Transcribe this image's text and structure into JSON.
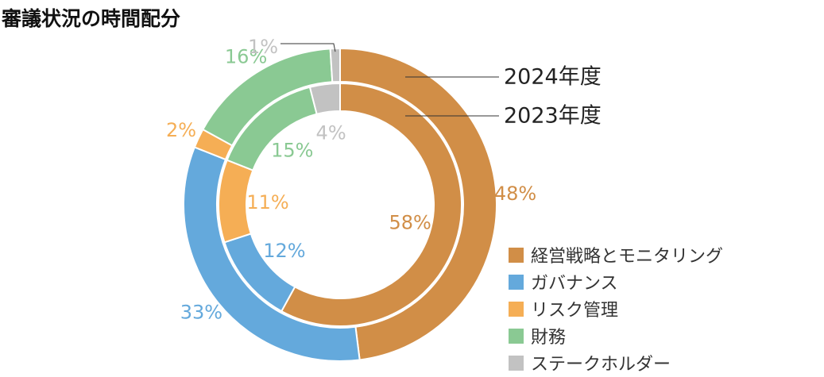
{
  "chart_data": {
    "type": "pie",
    "title": "審議状況の時間配分",
    "categories": [
      "経営戦略とモニタリング",
      "ガバナンス",
      "リスク管理",
      "財務",
      "ステークホルダー"
    ],
    "colors": [
      "#D18E47",
      "#64A9DC",
      "#F5AE55",
      "#8AC993",
      "#C2C2C2"
    ],
    "series": [
      {
        "name": "2024年度",
        "ring": "outer",
        "values": [
          48,
          33,
          2,
          16,
          1
        ]
      },
      {
        "name": "2023年度",
        "ring": "inner",
        "values": [
          58,
          12,
          11,
          15,
          4
        ]
      }
    ],
    "legend_position": "bottom-right"
  }
}
